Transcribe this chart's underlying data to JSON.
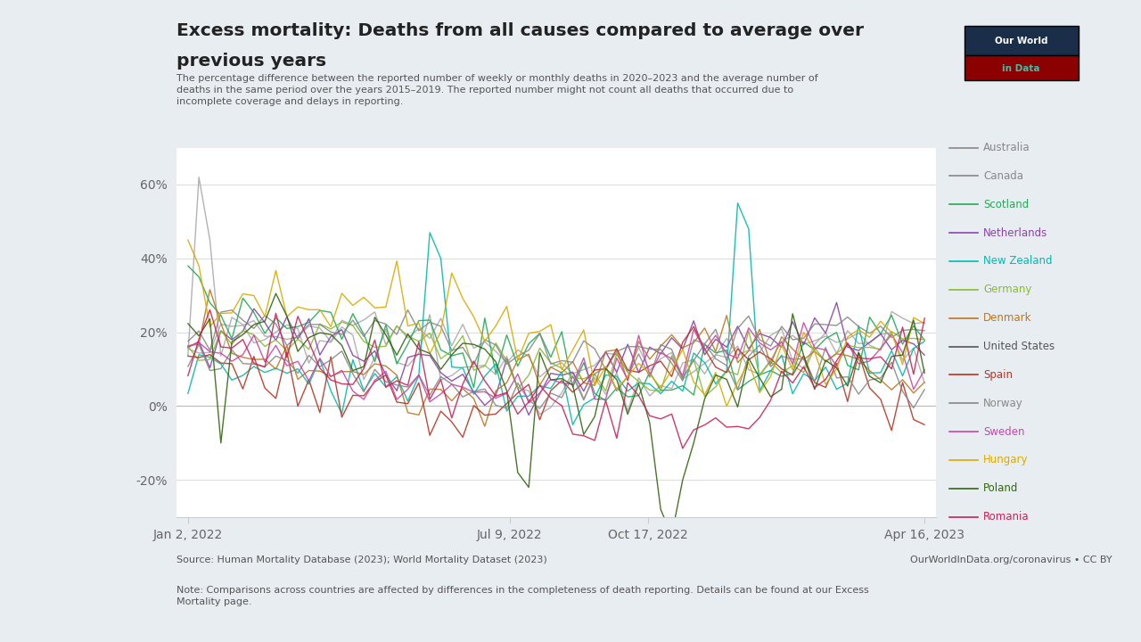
{
  "title_line1": "Excess mortality: Deaths from all causes compared to average over",
  "title_line2": "previous years",
  "subtitle": "The percentage difference between the reported number of weekly or monthly deaths in 2020–2023 and the average number of\ndeaths in the same period over the years 2015–2019. The reported number might not count all deaths that occurred due to\nincomplete coverage and delays in reporting.",
  "source_left": "Source: Human Mortality Database (2023); World Mortality Dataset (2023)",
  "source_right": "OurWorldInData.org/coronavirus • CC BY",
  "note": "Note: Comparisons across countries are affected by differences in the completeness of death reporting. Details can be found at our Excess\nMortality page.",
  "xlabel_ticks": [
    "Jan 2, 2022",
    "Jul 9, 2022",
    "Oct 17, 2022",
    "Apr 16, 2023"
  ],
  "ylim": [
    -30,
    70
  ],
  "outer_bg": "#e8edf2",
  "inner_left_bg": "#eaecf0",
  "plot_bg_color": "#ffffff",
  "countries": [
    "Australia",
    "Canada",
    "Scotland",
    "Netherlands",
    "New Zealand",
    "Germany",
    "Denmark",
    "United States",
    "Spain",
    "Norway",
    "Sweden",
    "Hungary",
    "Poland",
    "Romania"
  ],
  "country_colors": {
    "Australia": "#aaaaaa",
    "Canada": "#aaaaaa",
    "Scotland": "#22aa55",
    "Netherlands": "#8844aa",
    "New Zealand": "#00bbaa",
    "Germany": "#88bb33",
    "Denmark": "#bb7722",
    "United States": "#888888",
    "Spain": "#bb3322",
    "Norway": "#888888",
    "Sweden": "#cc44aa",
    "Hungary": "#ddaa00",
    "Poland": "#336611",
    "Romania": "#cc2255"
  },
  "legend_colors_text": {
    "Australia": "#888888",
    "Canada": "#888888",
    "Scotland": "#22aa55",
    "Netherlands": "#8844aa",
    "New Zealand": "#00bbaa",
    "Germany": "#88bb33",
    "Denmark": "#bb7722",
    "United States": "#555555",
    "Spain": "#bb3322",
    "Norway": "#888888",
    "Sweden": "#cc44aa",
    "Hungary": "#ddaa00",
    "Poland": "#336611",
    "Romania": "#cc2255"
  },
  "logo_bg": "#1a2e4a",
  "logo_red": "#cc2222",
  "logo_text_top": "Our World",
  "logo_text_bot": "in Data",
  "logo_teal": "#4db8a0"
}
